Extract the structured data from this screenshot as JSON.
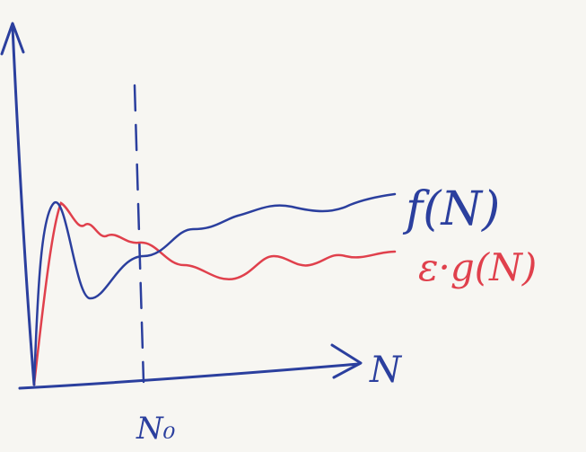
{
  "labels": {
    "f": "f(N)",
    "g": "ε·g(N)",
    "x_axis": "N",
    "n0": "N₀"
  }
}
